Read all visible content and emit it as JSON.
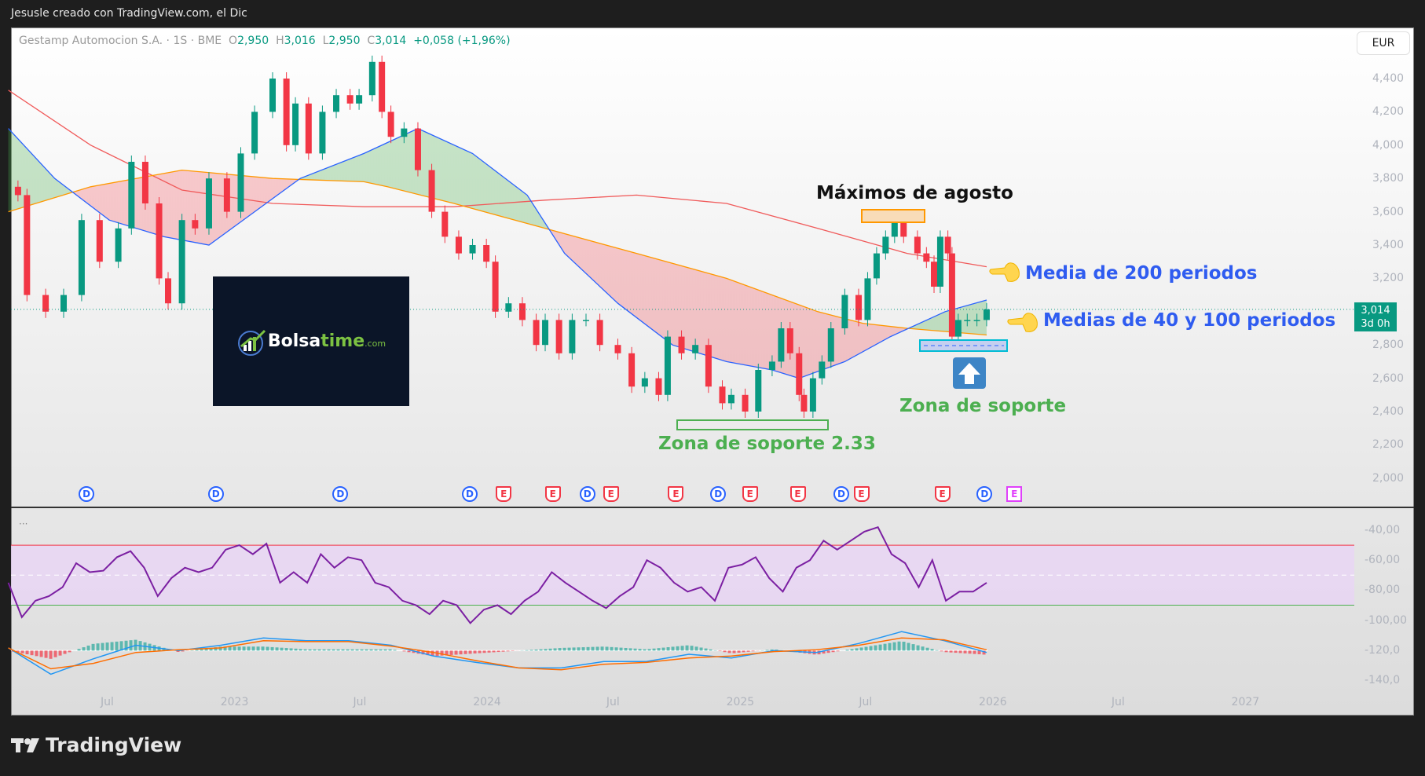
{
  "header": {
    "title": "Jesusle creado con TradingView.com, el Dic"
  },
  "legend": {
    "symbol": "Gestamp Automocion S.A. · 1S · BME",
    "o_label": "O",
    "o": "2,950",
    "h_label": "H",
    "h": "3,016",
    "l_label": "L",
    "l": "2,950",
    "c_label": "C",
    "c": "3,014",
    "change": "+0,058 (+1,96%)"
  },
  "currency": "EUR",
  "last_price": {
    "value": "3,014",
    "countdown": "3d 0h"
  },
  "price_axis": [
    "4,400",
    "4,200",
    "4,000",
    "3,800",
    "3,600",
    "3,400",
    "3,200",
    "2,800",
    "2,600",
    "2,400",
    "2,200",
    "2,000"
  ],
  "indicator_axis": [
    "-40,00",
    "-60,00",
    "-80,00",
    "-100,00",
    "-120,0",
    "-140,0"
  ],
  "indicator_menu": "···",
  "events": [
    {
      "type": "D",
      "date": "2022-06-01"
    },
    {
      "type": "D",
      "date": "2022-12-05"
    },
    {
      "type": "D",
      "date": "2023-06-03"
    },
    {
      "type": "D",
      "date": "2023-12-07"
    },
    {
      "type": "E",
      "date": "2024-01-25"
    },
    {
      "type": "E",
      "date": "2024-04-05"
    },
    {
      "type": "D",
      "date": "2024-05-25"
    },
    {
      "type": "E",
      "date": "2024-06-28"
    },
    {
      "type": "E",
      "date": "2024-09-30"
    },
    {
      "type": "D",
      "date": "2024-11-30"
    },
    {
      "type": "E",
      "date": "2025-01-15"
    },
    {
      "type": "E",
      "date": "2025-03-25"
    },
    {
      "type": "D",
      "date": "2025-05-27"
    },
    {
      "type": "E",
      "date": "2025-06-25"
    },
    {
      "type": "E",
      "date": "2025-10-20"
    },
    {
      "type": "D",
      "date": "2025-12-20"
    },
    {
      "type": "P",
      "date": "2026-02-01"
    }
  ],
  "annotations": {
    "maximos": "Máximos de agosto",
    "media200": "Media de 200 periodos",
    "medias40_100": "Medias de 40 y 100 periodos",
    "zona_soporte": "Zona de soporte",
    "zona_soporte_233": "Zona de soporte 2.33",
    "logo": {
      "brand_a": "Bolsa",
      "brand_b": "time",
      "brand_c": ".com"
    }
  },
  "footer": {
    "brand": "TradingView"
  },
  "chart_data": [
    {
      "type": "candlestick",
      "title": "Gestamp Automocion S.A. · 1S · BME",
      "ylim": [
        2.0,
        4.4
      ],
      "y_unit": "EUR",
      "xlim": [
        "2022-02-01",
        "2027-06-01"
      ],
      "x_ticks": [
        {
          "label": "Jul",
          "date": "2022-07-01"
        },
        {
          "label": "2023",
          "date": "2023-01-01"
        },
        {
          "label": "Jul",
          "date": "2023-07-01"
        },
        {
          "label": "2024",
          "date": "2024-01-01"
        },
        {
          "label": "Jul",
          "date": "2024-07-01"
        },
        {
          "label": "2025",
          "date": "2025-01-01"
        },
        {
          "label": "Jul",
          "date": "2025-07-01"
        },
        {
          "label": "2026",
          "date": "2026-01-01"
        },
        {
          "label": "Jul",
          "date": "2026-07-01"
        },
        {
          "label": "2027",
          "date": "2027-01-01"
        }
      ],
      "colors": {
        "up": "#089981",
        "down": "#f23645",
        "ma40": "#2962ff",
        "ma100": "#ff9800",
        "ma200": "#f05a5a"
      },
      "closes": [
        [
          "2022-02-22",
          3.7
        ],
        [
          "2022-03-07",
          3.1
        ],
        [
          "2022-04-03",
          3.0
        ],
        [
          "2022-04-29",
          3.1
        ],
        [
          "2022-05-25",
          3.55
        ],
        [
          "2022-06-20",
          3.3
        ],
        [
          "2022-07-17",
          3.5
        ],
        [
          "2022-08-05",
          3.9
        ],
        [
          "2022-08-25",
          3.65
        ],
        [
          "2022-09-14",
          3.2
        ],
        [
          "2022-09-27",
          3.05
        ],
        [
          "2022-10-17",
          3.55
        ],
        [
          "2022-11-05",
          3.5
        ],
        [
          "2022-11-25",
          3.8
        ],
        [
          "2022-12-21",
          3.6
        ],
        [
          "2023-01-10",
          3.95
        ],
        [
          "2023-01-30",
          4.2
        ],
        [
          "2023-02-25",
          4.4
        ],
        [
          "2023-03-17",
          4.0
        ],
        [
          "2023-03-30",
          4.25
        ],
        [
          "2023-04-18",
          3.95
        ],
        [
          "2023-05-08",
          4.2
        ],
        [
          "2023-05-28",
          4.3
        ],
        [
          "2023-06-17",
          4.25
        ],
        [
          "2023-06-30",
          4.3
        ],
        [
          "2023-07-19",
          4.5
        ],
        [
          "2023-08-02",
          4.2
        ],
        [
          "2023-08-15",
          4.05
        ],
        [
          "2023-09-03",
          4.1
        ],
        [
          "2023-09-23",
          3.85
        ],
        [
          "2023-10-13",
          3.6
        ],
        [
          "2023-11-01",
          3.45
        ],
        [
          "2023-11-21",
          3.35
        ],
        [
          "2023-12-11",
          3.4
        ],
        [
          "2023-12-31",
          3.3
        ],
        [
          "2024-01-13",
          3.0
        ],
        [
          "2024-02-01",
          3.05
        ],
        [
          "2024-02-21",
          2.95
        ],
        [
          "2024-03-12",
          2.8
        ],
        [
          "2024-03-25",
          2.95
        ],
        [
          "2024-04-14",
          2.75
        ],
        [
          "2024-05-03",
          2.95
        ],
        [
          "2024-05-23",
          2.95
        ],
        [
          "2024-06-12",
          2.8
        ],
        [
          "2024-07-08",
          2.75
        ],
        [
          "2024-07-28",
          2.55
        ],
        [
          "2024-08-16",
          2.6
        ],
        [
          "2024-09-05",
          2.5
        ],
        [
          "2024-09-18",
          2.85
        ],
        [
          "2024-10-08",
          2.75
        ],
        [
          "2024-10-28",
          2.8
        ],
        [
          "2024-11-16",
          2.55
        ],
        [
          "2024-12-06",
          2.45
        ],
        [
          "2024-12-19",
          2.5
        ],
        [
          "2025-01-08",
          2.4
        ],
        [
          "2025-01-27",
          2.65
        ],
        [
          "2025-02-16",
          2.7
        ],
        [
          "2025-03-01",
          2.9
        ],
        [
          "2025-03-14",
          2.75
        ],
        [
          "2025-03-27",
          2.5
        ],
        [
          "2025-04-03",
          2.4
        ],
        [
          "2025-04-16",
          2.6
        ],
        [
          "2025-04-29",
          2.7
        ],
        [
          "2025-05-12",
          2.9
        ],
        [
          "2025-06-01",
          3.1
        ],
        [
          "2025-06-21",
          2.95
        ],
        [
          "2025-07-04",
          3.2
        ],
        [
          "2025-07-17",
          3.35
        ],
        [
          "2025-07-30",
          3.45
        ],
        [
          "2025-08-12",
          3.55
        ],
        [
          "2025-08-25",
          3.45
        ],
        [
          "2025-09-14",
          3.35
        ],
        [
          "2025-09-27",
          3.3
        ],
        [
          "2025-10-08",
          3.15
        ],
        [
          "2025-10-17",
          3.45
        ],
        [
          "2025-10-28",
          3.35
        ],
        [
          "2025-11-03",
          2.85
        ],
        [
          "2025-11-12",
          2.95
        ],
        [
          "2025-11-25",
          2.95
        ],
        [
          "2025-12-09",
          2.95
        ],
        [
          "2025-12-23",
          3.014
        ]
      ],
      "ma200": [
        [
          "2022-02-08",
          4.33
        ],
        [
          "2022-06-07",
          4.0
        ],
        [
          "2022-10-17",
          3.73
        ],
        [
          "2023-02-25",
          3.65
        ],
        [
          "2023-07-07",
          3.63
        ],
        [
          "2023-11-14",
          3.63
        ],
        [
          "2024-03-25",
          3.67
        ],
        [
          "2024-08-04",
          3.7
        ],
        [
          "2024-12-12",
          3.65
        ],
        [
          "2025-04-23",
          3.5
        ],
        [
          "2025-08-30",
          3.35
        ],
        [
          "2025-12-23",
          3.27
        ]
      ],
      "ma100": [
        [
          "2022-02-08",
          3.6
        ],
        [
          "2022-06-07",
          3.75
        ],
        [
          "2022-10-17",
          3.85
        ],
        [
          "2023-02-25",
          3.8
        ],
        [
          "2023-07-07",
          3.78
        ],
        [
          "2023-08-10",
          3.75
        ],
        [
          "2023-11-14",
          3.65
        ],
        [
          "2024-03-25",
          3.5
        ],
        [
          "2024-08-04",
          3.35
        ],
        [
          "2024-12-12",
          3.2
        ],
        [
          "2025-04-23",
          3.0
        ],
        [
          "2025-06-27",
          2.93
        ],
        [
          "2025-08-30",
          2.9
        ],
        [
          "2025-12-23",
          2.86
        ]
      ],
      "ma40": [
        [
          "2022-02-08",
          4.1
        ],
        [
          "2022-04-16",
          3.8
        ],
        [
          "2022-07-04",
          3.55
        ],
        [
          "2022-09-21",
          3.45
        ],
        [
          "2022-11-25",
          3.4
        ],
        [
          "2023-01-30",
          3.6
        ],
        [
          "2023-04-06",
          3.8
        ],
        [
          "2023-07-07",
          3.95
        ],
        [
          "2023-09-23",
          4.1
        ],
        [
          "2023-12-11",
          3.95
        ],
        [
          "2024-02-28",
          3.7
        ],
        [
          "2024-04-22",
          3.35
        ],
        [
          "2024-07-08",
          3.05
        ],
        [
          "2024-09-25",
          2.8
        ],
        [
          "2024-12-12",
          2.7
        ],
        [
          "2025-02-16",
          2.65
        ],
        [
          "2025-03-27",
          2.6
        ],
        [
          "2025-06-01",
          2.7
        ],
        [
          "2025-08-06",
          2.85
        ],
        [
          "2025-10-24",
          3.0
        ],
        [
          "2025-12-23",
          3.07
        ]
      ]
    },
    {
      "type": "line",
      "ylim": [
        -145,
        -30
      ],
      "x_range": [
        "2022-02-08",
        "2025-12-23"
      ],
      "bands": {
        "upper": -50,
        "middle": -70,
        "lower": -90
      },
      "colors": {
        "line": "#7b1fa2",
        "upper": "#f23645",
        "lower": "#4caf50",
        "band_fill": "#e8d5f5"
      },
      "values": [
        -75,
        -98,
        -87,
        -84,
        -78,
        -62,
        -68,
        -67,
        -58,
        -54,
        -65,
        -84,
        -72,
        -65,
        -68,
        -65,
        -53,
        -50,
        -56,
        -49,
        -75,
        -68,
        -75,
        -56,
        -65,
        -58,
        -60,
        -75,
        -78,
        -87,
        -90,
        -96,
        -87,
        -90,
        -102,
        -93,
        -90,
        -96,
        -87,
        -81,
        -68,
        -75,
        -81,
        -87,
        -92,
        -84,
        -78,
        -60,
        -65,
        -75,
        -81,
        -78,
        -87,
        -65,
        -63,
        -58,
        -72,
        -81,
        -65,
        -60,
        -47,
        -53,
        -47,
        -41,
        -38,
        -56,
        -62,
        -78,
        -60,
        -87,
        -81,
        -81,
        -75
      ]
    },
    {
      "type": "line",
      "x_range": [
        "2022-02-08",
        "2025-12-23"
      ],
      "colors": {
        "macd": "#2196f3",
        "signal": "#ff6d00",
        "hist_up": "#26a69a",
        "hist_down": "#f23645"
      },
      "macd": [
        0.015,
        -0.13,
        -0.045,
        0.03,
        0,
        0.03,
        0.07,
        0.055,
        0.055,
        0.03,
        -0.03,
        -0.065,
        -0.095,
        -0.095,
        -0.06,
        -0.06,
        -0.02,
        -0.04,
        0,
        -0.01,
        0.04,
        0.105,
        0.055,
        -0.01
      ],
      "signal": [
        0.015,
        -0.1,
        -0.07,
        -0.01,
        0.005,
        0.015,
        0.055,
        0.05,
        0.05,
        0.025,
        -0.01,
        -0.055,
        -0.095,
        -0.105,
        -0.075,
        -0.065,
        -0.04,
        -0.03,
        -0.005,
        0.005,
        0.03,
        0.07,
        0.06,
        0.005
      ]
    }
  ]
}
